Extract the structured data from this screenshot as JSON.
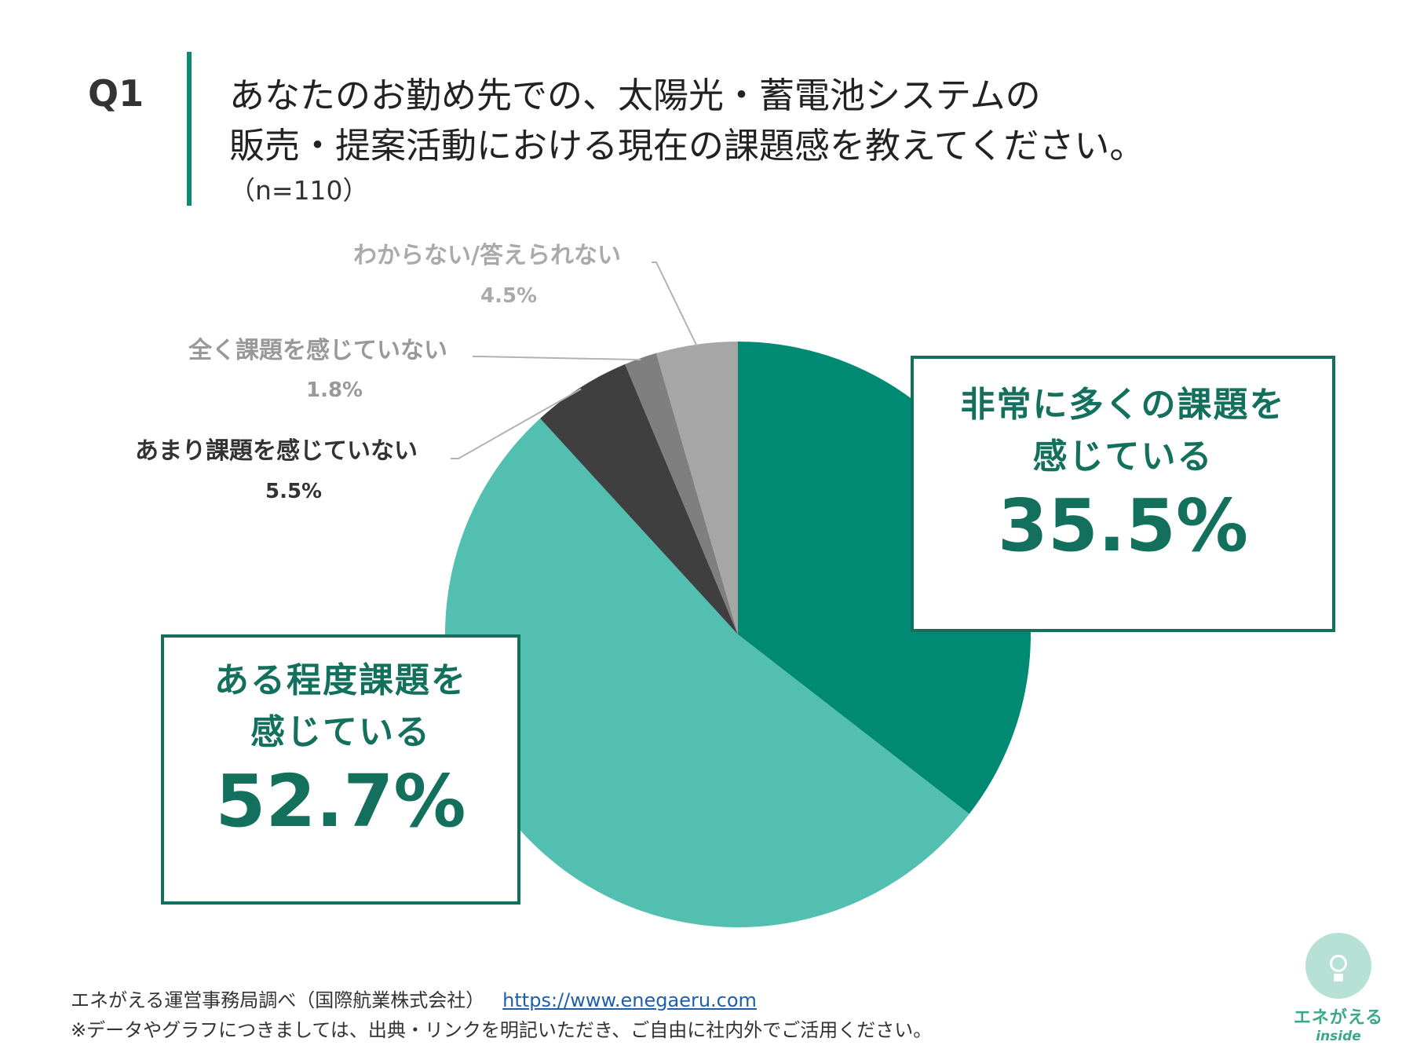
{
  "header": {
    "question_label": "Q1",
    "title_lines": [
      "あなたのお勤め先での、太陽光・蓄電池システムの",
      "販売・提案活動における現在の課題感を教えてください。"
    ],
    "sample_size": "（n=110）"
  },
  "chart_data": {
    "type": "pie",
    "start_angle_deg": 0,
    "direction": "clockwise",
    "slices": [
      {
        "label_lines": [
          "非常に多くの課題を",
          "感じている"
        ],
        "value": 35.5,
        "display": "35.5%",
        "color": "#008a74"
      },
      {
        "label_lines": [
          "ある程度課題を",
          "感じている"
        ],
        "value": 52.7,
        "display": "52.7%",
        "color": "#52bfb0"
      },
      {
        "label": "あまり課題を感じていない",
        "value": 5.5,
        "display": "5.5%",
        "color": "#3f3f3f"
      },
      {
        "label": "全く課題を感じていない",
        "value": 1.8,
        "display": "1.8%",
        "color": "#7f7f7f"
      },
      {
        "label": "わからない/答えられない",
        "value": 4.5,
        "display": "4.5%",
        "color": "#a6a6a6"
      }
    ],
    "label_colors": {
      "あまり課題を感じていない": "#333333",
      "全く課題を感じていない": "#999999",
      "わからない/答えられない": "#aaaaaa"
    }
  },
  "footer": {
    "source": "エネがえる運営事務局調べ（国際航業株式会社）",
    "url": "https://www.enegaeru.com",
    "note": "※データやグラフにつきましては、出典・リンクを明記いただき、ご自由に社内外でご活用ください。"
  },
  "logo": {
    "name": "エネがえる",
    "sub": "inside",
    "icon": "lightbulb-icon"
  }
}
